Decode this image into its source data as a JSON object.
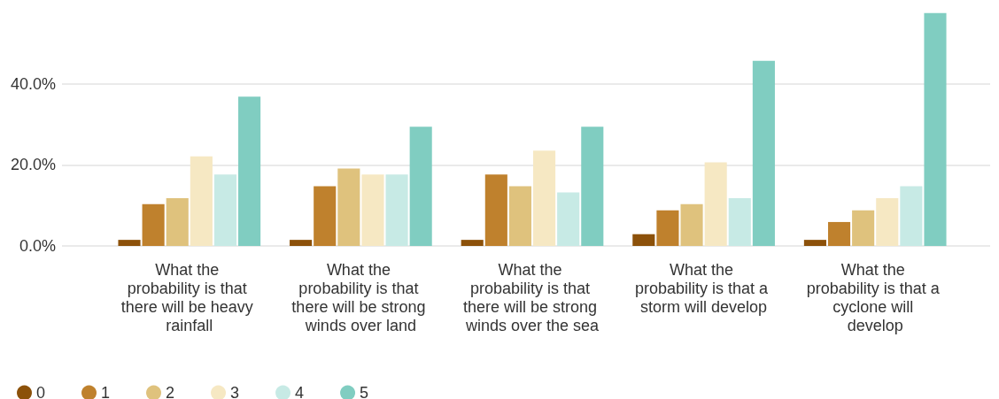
{
  "chart_data": {
    "type": "bar",
    "categories": [
      "What the probability is that there will be heavy rainfall",
      "What the probability is that there will be strong winds over land",
      "What the probability is that there will be strong winds over the sea",
      "What the probability is that a storm will develop",
      "What the probability is that a cyclone will develop"
    ],
    "series": [
      {
        "name": "0",
        "color": "#8c510a",
        "values": [
          1.5,
          1.5,
          1.5,
          2.9,
          1.5
        ]
      },
      {
        "name": "1",
        "color": "#bf812d",
        "values": [
          10.3,
          14.7,
          17.6,
          8.8,
          5.9
        ]
      },
      {
        "name": "2",
        "color": "#dfc27d",
        "values": [
          11.8,
          19.1,
          14.7,
          10.3,
          8.8
        ]
      },
      {
        "name": "3",
        "color": "#f6e8c3",
        "values": [
          22.1,
          17.6,
          23.5,
          20.6,
          11.8
        ]
      },
      {
        "name": "4",
        "color": "#c7eae5",
        "values": [
          17.6,
          17.6,
          13.2,
          11.8,
          14.7
        ]
      },
      {
        "name": "5",
        "color": "#80cdc1",
        "values": [
          36.8,
          29.4,
          29.4,
          45.6,
          57.4
        ]
      }
    ],
    "ylim": [
      0,
      58
    ],
    "yticks": [
      {
        "value": 0,
        "label": "0.0%"
      },
      {
        "value": 20,
        "label": "20.0%"
      },
      {
        "value": 40,
        "label": "40.0%"
      }
    ],
    "grid": "y",
    "legend": "bottom left"
  }
}
